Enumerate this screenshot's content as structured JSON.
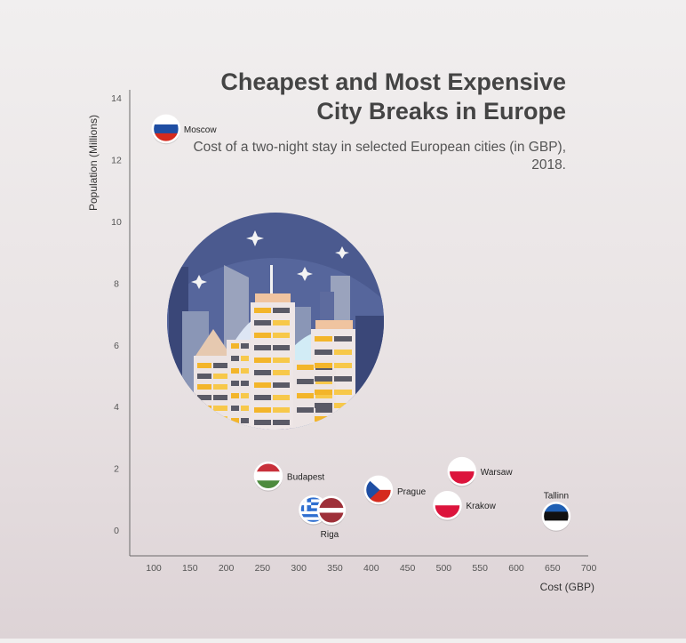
{
  "title": "Cheapest and Most Expensive City Breaks in Europe",
  "subtitle": "Cost of a two-night stay in selected European cities (in GBP), 2018.",
  "chart_data": {
    "type": "scatter",
    "title": "Cheapest and Most Expensive City Breaks in Europe",
    "subtitle": "Cost of a two-night stay in selected European cities (in GBP), 2018.",
    "xlabel": "Cost (GBP)",
    "ylabel": "Population (Millions)",
    "xlim": [
      100,
      700
    ],
    "ylim": [
      0,
      14
    ],
    "xticks": [
      100,
      150,
      200,
      250,
      300,
      350,
      400,
      450,
      500,
      550,
      600,
      650,
      700
    ],
    "yticks": [
      0,
      2,
      4,
      6,
      8,
      10,
      12,
      14
    ],
    "grid": false,
    "legend": "none",
    "points": [
      {
        "label": "Moscow",
        "x": 117,
        "y": 13.0,
        "flag": "russia"
      },
      {
        "label": "Budapest",
        "x": 258,
        "y": 1.75,
        "flag": "hungary"
      },
      {
        "label": "",
        "x": 320,
        "y": 0.66,
        "flag": "greece"
      },
      {
        "label": "Riga",
        "x": 345,
        "y": 0.64,
        "flag": "latvia"
      },
      {
        "label": "Prague",
        "x": 410,
        "y": 1.3,
        "flag": "czechia"
      },
      {
        "label": "Warsaw",
        "x": 525,
        "y": 1.9,
        "flag": "poland"
      },
      {
        "label": "Krakow",
        "x": 505,
        "y": 0.8,
        "flag": "poland"
      },
      {
        "label": "Tallinn",
        "x": 655,
        "y": 0.45,
        "flag": "estonia"
      }
    ]
  },
  "colors": {
    "axis": "#6b6b6b",
    "sky": "#4b5a8f",
    "russia": [
      "#ffffff",
      "#1f4ea3",
      "#d52b1e"
    ],
    "hungary": [
      "#c8303a",
      "#ffffff",
      "#4d8b3e"
    ],
    "czechia": [
      "#ffffff",
      "#d52b1e",
      "#1f4ea3"
    ],
    "poland": [
      "#ffffff",
      "#dc143c"
    ],
    "latvia": [
      "#9e3039",
      "#ffffff"
    ],
    "estonia": [
      "#1f5fb3",
      "#111111",
      "#ffffff"
    ],
    "greece": [
      "#2f6fd0",
      "#ffffff"
    ]
  },
  "decoration": {
    "icon": "city-skyline-night-icon"
  }
}
